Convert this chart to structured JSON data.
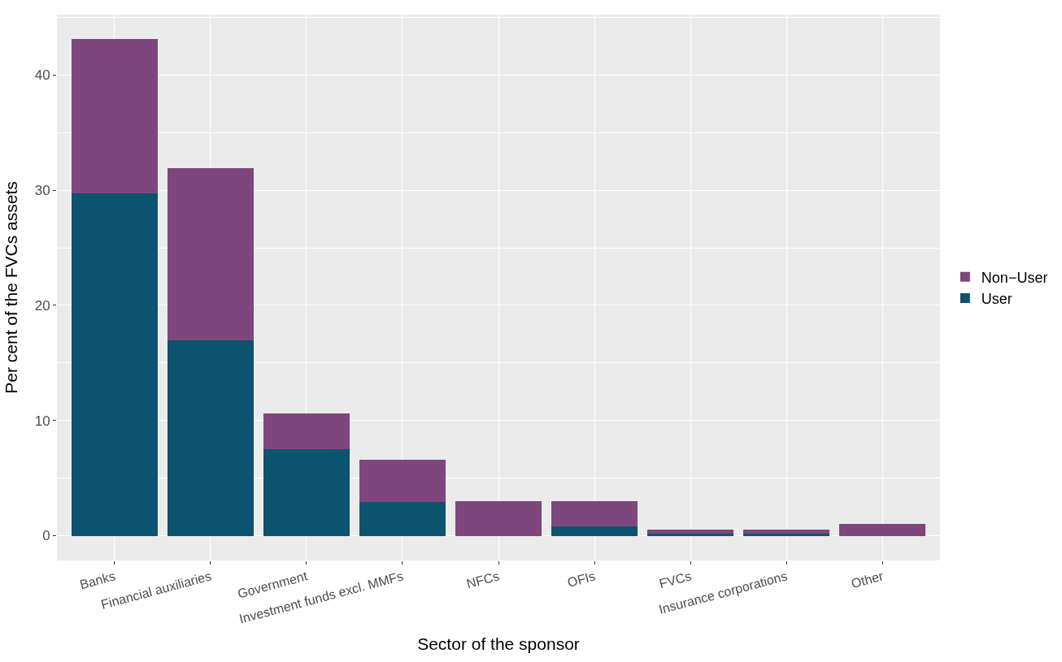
{
  "chart_data": {
    "type": "bar",
    "stacked": true,
    "xlabel": "Sector of the sponsor",
    "ylabel": "Per cent of the FVCs assets",
    "categories": [
      "Banks",
      "Financial auxiliaries",
      "Government",
      "Investment funds excl. MMFs",
      "NFCs",
      "OFIs",
      "FVCs",
      "Insurance corporations",
      "Other"
    ],
    "series": [
      {
        "name": "User",
        "color": "#0c5370",
        "values": [
          29.7,
          17.0,
          7.5,
          2.9,
          null,
          0.8,
          0.2,
          0.2,
          null
        ]
      },
      {
        "name": "Non−User",
        "color": "#7d477d",
        "values": [
          13.4,
          14.9,
          3.1,
          3.7,
          3.0,
          2.2,
          0.35,
          0.3,
          1.0
        ]
      }
    ],
    "ylim": [
      -2.15,
      45.25
    ],
    "yticks": [
      0,
      10,
      20,
      30,
      40
    ],
    "grid": true,
    "legend": "right"
  }
}
